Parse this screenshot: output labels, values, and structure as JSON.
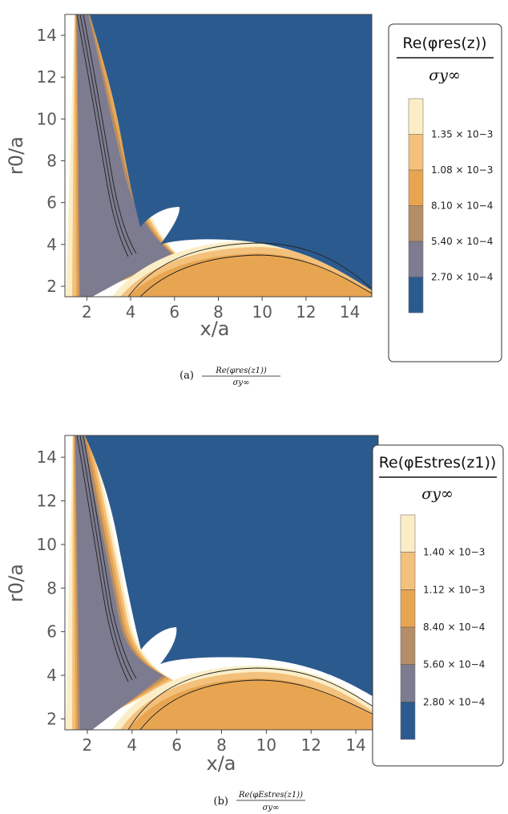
{
  "colors": {
    "background_level": "#2b5a8e",
    "levels": [
      "#2b5a8e",
      "#7c7b8f",
      "#b58d66",
      "#e8a551",
      "#f3c17c",
      "#fbeec7"
    ],
    "contour_line": "#222222"
  },
  "chart_data": [
    {
      "panel": "a",
      "type": "heatmap",
      "subtype": "filled-contour",
      "xlabel": "x/a",
      "ylabel": "r0/a",
      "xlim": [
        1,
        15
      ],
      "ylim": [
        1.5,
        15
      ],
      "xticks": [
        "2",
        "4",
        "6",
        "8",
        "10",
        "12",
        "14"
      ],
      "yticks": [
        "2",
        "4",
        "6",
        "8",
        "10",
        "12",
        "14"
      ],
      "legend_title_top": "Re(φres(z))",
      "legend_title_bottom": "σy∞",
      "legend_ticks": [
        "1.35 × 10−3",
        "1.08 × 10−3",
        "8.10 × 10−4",
        "5.40 × 10−4",
        "2.70 × 10−4"
      ],
      "levels": [
        0.00027,
        0.00054,
        0.00081,
        0.00108,
        0.00135
      ],
      "caption_label": "(a)",
      "caption_formula_num": "Re(φres(z1))",
      "caption_formula_den": "σy∞"
    },
    {
      "panel": "b",
      "type": "heatmap",
      "subtype": "filled-contour",
      "xlabel": "x/a",
      "ylabel": "r0/a",
      "xlim": [
        1,
        15
      ],
      "ylim": [
        1.5,
        15
      ],
      "xticks": [
        "2",
        "4",
        "6",
        "8",
        "10",
        "12",
        "14"
      ],
      "yticks": [
        "2",
        "4",
        "6",
        "8",
        "10",
        "12",
        "14"
      ],
      "legend_title_top": "Re(φEstres(z1))",
      "legend_title_bottom": "σy∞",
      "legend_ticks": [
        "1.40 × 10−3",
        "1.12 × 10−3",
        "8.40 × 10−4",
        "5.60 × 10−4",
        "2.80 × 10−4"
      ],
      "levels": [
        0.00028,
        0.00056,
        0.00084,
        0.00112,
        0.0014
      ],
      "caption_label": "(b)",
      "caption_formula_num": "Re(φEstres(z1))",
      "caption_formula_den": "σy∞"
    }
  ]
}
